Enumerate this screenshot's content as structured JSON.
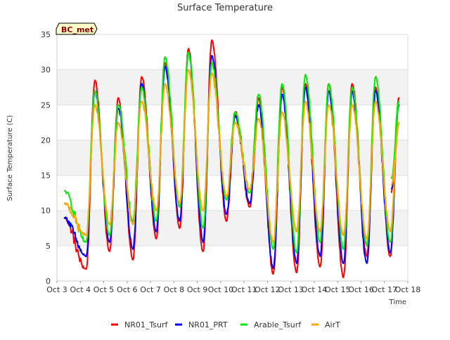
{
  "chart_data": {
    "type": "line",
    "title": "Surface Temperature",
    "xlabel": "Time",
    "ylabel": "Surface Temperature (C)",
    "badge": "BC_met",
    "x_ticks": [
      "Oct 3",
      "Oct 4",
      "Oct 5",
      "Oct 6",
      "Oct 7",
      "Oct 8",
      "Oct 9",
      "Oct 10",
      "Oct 11",
      "Oct 12",
      "Oct 13",
      "Oct 14",
      "Oct 15",
      "Oct 16",
      "Oct 17",
      "Oct 18"
    ],
    "x_range": [
      3,
      18
    ],
    "ylim": [
      0,
      35
    ],
    "y_ticks": [
      0,
      5,
      10,
      15,
      20,
      25,
      30,
      35
    ],
    "grid": "horizontal bands",
    "legend_position": "bottom",
    "day_extremes": {
      "days": [
        3.3,
        4,
        5,
        6,
        7,
        8,
        9,
        10,
        11,
        12,
        13,
        14,
        15,
        16,
        17
      ],
      "min_time_offset": 0.25,
      "max_time_offset": 0.62,
      "series": [
        {
          "name": "NR01_Tsurf",
          "color": "#ff0000",
          "mins": [
            9,
            1.7,
            4.2,
            3,
            6,
            7.5,
            4.2,
            8.5,
            10.5,
            1,
            1.2,
            2,
            0.5,
            3.5,
            3.5
          ],
          "maxs": [
            null,
            28.5,
            26,
            29,
            31,
            33,
            34.2,
            24,
            26,
            27.5,
            28,
            28,
            28,
            27.5,
            26
          ],
          "end": 12.5
        },
        {
          "name": "NR01_PRT",
          "color": "#0000ff",
          "mins": [
            9,
            3.5,
            5.5,
            4.5,
            7,
            8.5,
            5.5,
            9.5,
            11,
            1.8,
            2.5,
            3.5,
            2.5,
            2.5,
            4
          ],
          "maxs": [
            null,
            27,
            24.5,
            28,
            30.5,
            32.5,
            32,
            23.5,
            25,
            26.5,
            27.5,
            27,
            27,
            27,
            25
          ],
          "end": 13
        },
        {
          "name": "Arable_Tsurf",
          "color": "#00ee00",
          "mins": [
            12.8,
            5.5,
            6.5,
            8.5,
            8.5,
            10.5,
            7.5,
            11.5,
            12.5,
            4.5,
            4,
            5.5,
            4.5,
            5,
            5.5
          ],
          "maxs": [
            null,
            27,
            25,
            27.5,
            31.8,
            32.5,
            31,
            24,
            26.5,
            28,
            29.3,
            28,
            27.5,
            29,
            25.5
          ],
          "end": 14.5
        },
        {
          "name": "AirT",
          "color": "#ffa500",
          "mins": [
            11,
            6.5,
            8,
            8,
            10,
            11,
            10,
            12,
            13,
            5.5,
            7,
            7,
            6.5,
            6,
            7
          ],
          "maxs": [
            null,
            25,
            22.5,
            25.5,
            28,
            30,
            29.5,
            22.5,
            23,
            24,
            25.5,
            25,
            25,
            25.5,
            22.5
          ],
          "end": 13.5
        }
      ]
    }
  }
}
